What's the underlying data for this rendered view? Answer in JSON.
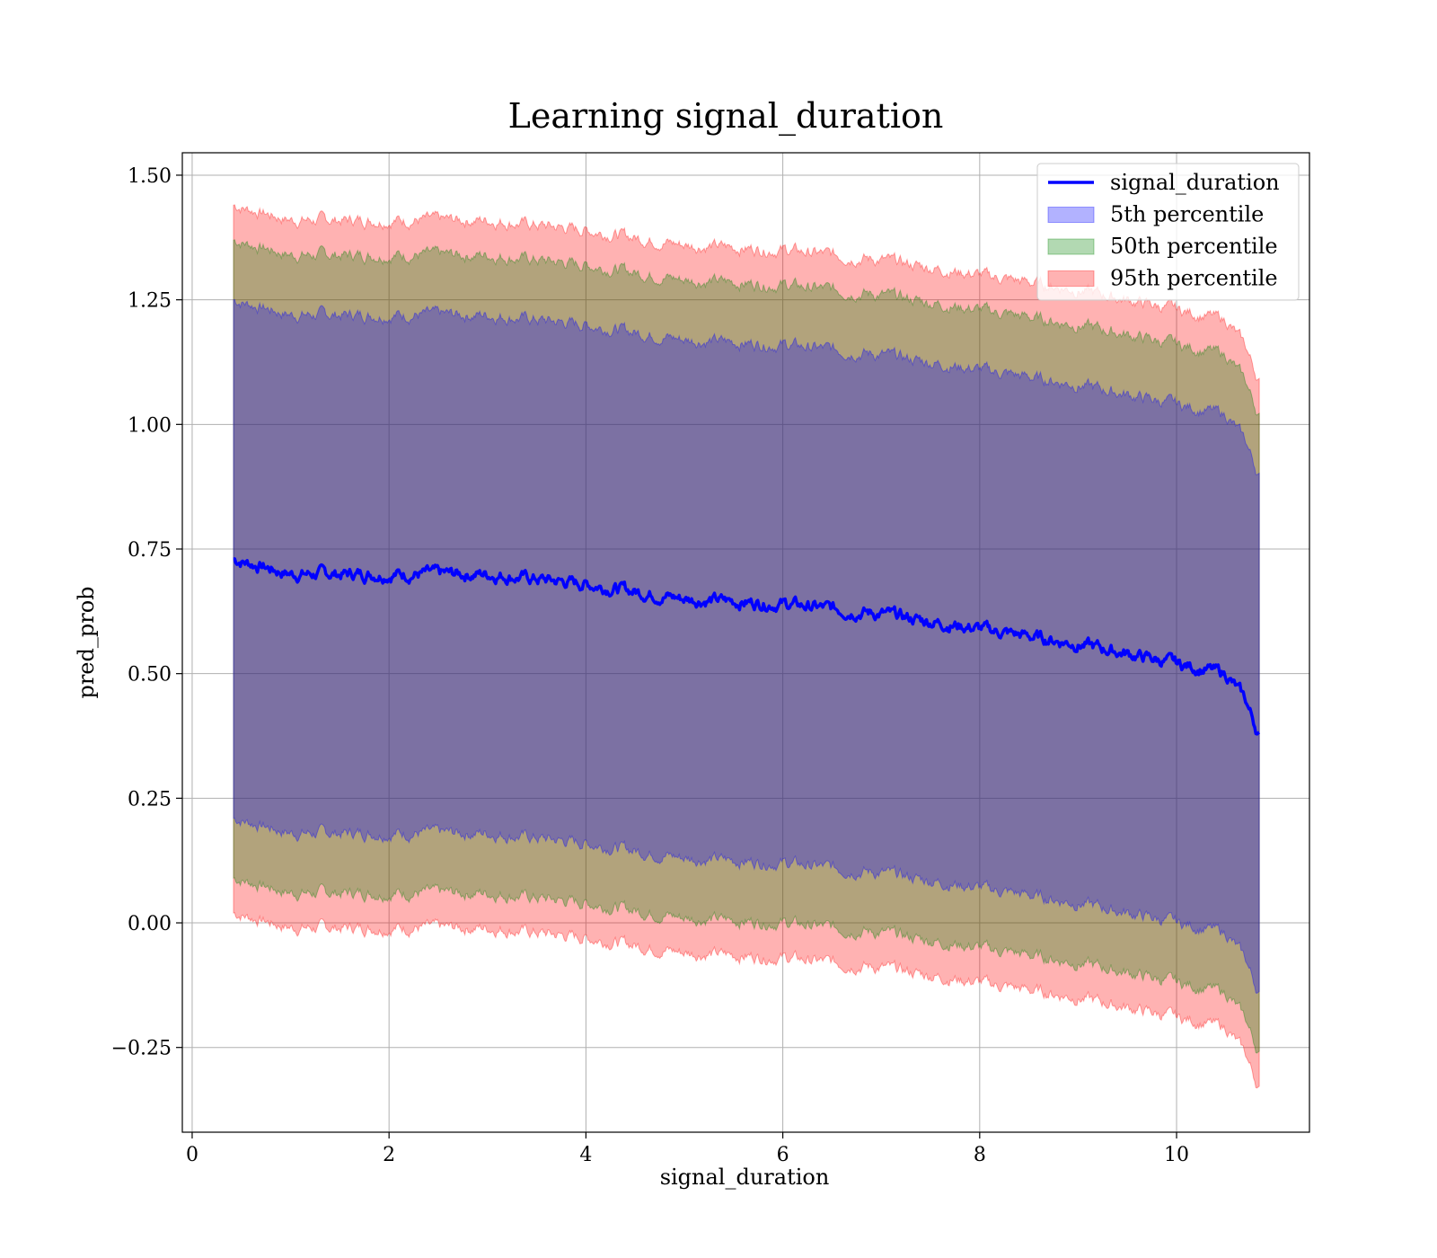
{
  "chart_data": {
    "type": "area",
    "title": "Learning signal_duration",
    "xlabel": "signal_duration",
    "ylabel": "pred_prob",
    "xlim": [
      -0.1,
      11.35
    ],
    "ylim": [
      -0.42,
      1.545
    ],
    "xticks": [
      "0",
      "2",
      "4",
      "6",
      "8",
      "10"
    ],
    "yticks": [
      "1.50",
      "1.25",
      "1.00",
      "0.75",
      "0.50",
      "0.25",
      "0.00",
      "−0.25"
    ],
    "grid": true,
    "legend_position": "top-right",
    "x": [
      0.42,
      1.0,
      2.0,
      3.0,
      4.0,
      5.0,
      6.0,
      7.0,
      8.0,
      9.0,
      10.0,
      10.5,
      10.84
    ],
    "mean": [
      0.73,
      0.7,
      0.7,
      0.7,
      0.68,
      0.65,
      0.64,
      0.62,
      0.59,
      0.56,
      0.52,
      0.5,
      0.41
    ],
    "series": [
      {
        "name": "signal_duration",
        "kind": "line",
        "color": "#0000ff",
        "values": [
          0.73,
          0.7,
          0.7,
          0.7,
          0.68,
          0.65,
          0.64,
          0.62,
          0.59,
          0.56,
          0.52,
          0.5,
          0.41
        ]
      },
      {
        "name": "5th percentile",
        "kind": "band",
        "color": "#0000ff",
        "half_width": 0.52
      },
      {
        "name": "50th percentile",
        "kind": "band",
        "color": "#008000",
        "half_width": 0.64
      },
      {
        "name": "95th percentile",
        "kind": "band",
        "color": "#ff0000",
        "half_width": 0.71
      }
    ]
  }
}
